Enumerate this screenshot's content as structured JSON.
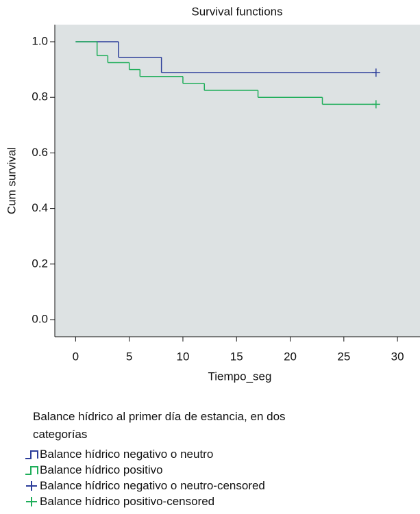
{
  "chart_data": {
    "type": "step",
    "title": "Survival functions",
    "x_label": "Tiempo_seg",
    "y_label": "Cum survival",
    "legend_title": "Balance hídrico al primer día de estancia, en dos categorías",
    "xlim": [
      -1.94,
      32.1
    ],
    "ylim": [
      -0.0616,
      1.0616
    ],
    "xticks": [
      0,
      5,
      10,
      15,
      20,
      25,
      30
    ],
    "yticks": [
      {
        "value": 0,
        "label": "0.0"
      },
      {
        "value": 0.2,
        "label": "0.2"
      },
      {
        "value": 0.4,
        "label": "0.4"
      },
      {
        "value": 0.6,
        "label": "0.6"
      },
      {
        "value": 0.8,
        "label": "0.8"
      },
      {
        "value": 1,
        "label": "1.0"
      }
    ],
    "background": "#dde2e3",
    "series": [
      {
        "name": "Balance hídrico negativo o neutro",
        "color": "#2b3d9a",
        "marker": "step",
        "x": [
          0,
          4,
          8,
          28
        ],
        "values": [
          1.0,
          0.944,
          0.889,
          0.889
        ]
      },
      {
        "name": "Balance hídrico positivo",
        "color": "#1fae5a",
        "marker": "step",
        "x": [
          0,
          2,
          3,
          5,
          6,
          10,
          12,
          17,
          23,
          28
        ],
        "values": [
          1.0,
          0.95,
          0.925,
          0.9,
          0.875,
          0.85,
          0.825,
          0.8,
          0.775,
          0.775
        ]
      },
      {
        "name": "Balance hídrico negativo o neutro-censored",
        "color": "#2b3d9a",
        "marker": "+",
        "x": [
          28
        ],
        "values": [
          0.889
        ]
      },
      {
        "name": "Balance hídrico positivo-censored",
        "color": "#1fae5a",
        "marker": "+",
        "x": [
          28
        ],
        "values": [
          0.775
        ]
      }
    ]
  }
}
